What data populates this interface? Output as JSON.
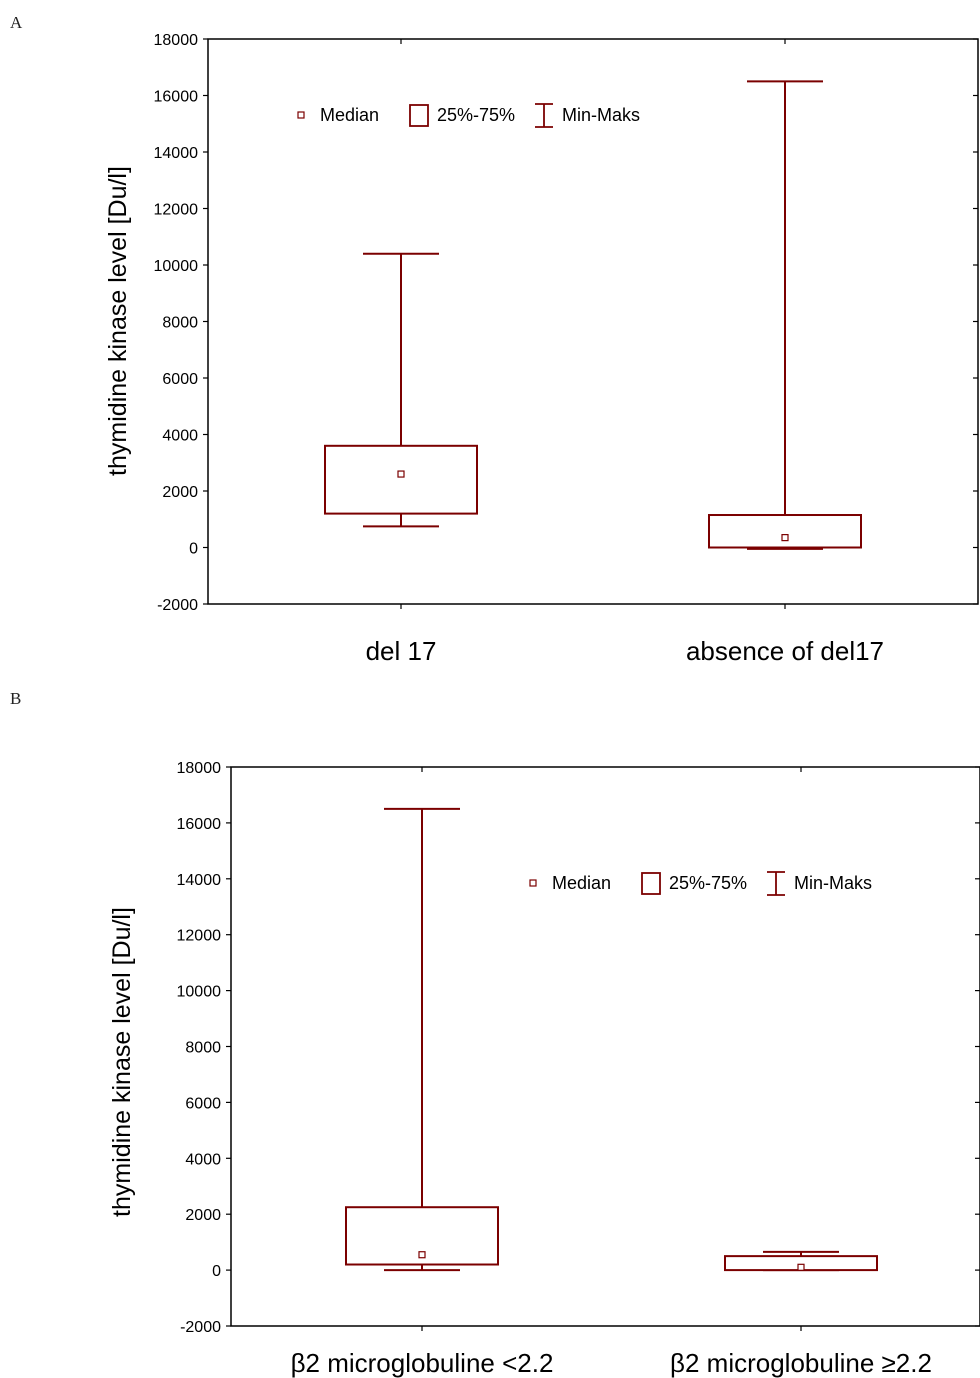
{
  "colors": {
    "series": "#7b0000",
    "axis": "#000000"
  },
  "chart_data": [
    {
      "panel": "A",
      "type": "box",
      "ylabel": "thymidine kinase level [Du/l]",
      "ylim": [
        -2000,
        18000
      ],
      "yticks": [
        -2000,
        0,
        2000,
        4000,
        6000,
        8000,
        10000,
        12000,
        14000,
        16000,
        18000
      ],
      "legend": {
        "placement": "top-left",
        "entries": [
          "Median",
          "25%-75%",
          "Min-Maks"
        ]
      },
      "categories": [
        "del 17",
        "absence of del17"
      ],
      "boxes": [
        {
          "min": 750,
          "q1": 1200,
          "median": 2600,
          "q3": 3600,
          "max": 10400
        },
        {
          "min": -50,
          "q1": 0,
          "median": 350,
          "q3": 1150,
          "max": 16500
        }
      ]
    },
    {
      "panel": "B",
      "type": "box",
      "ylabel": "thymidine kinase level [Du/l]",
      "ylim": [
        -2000,
        18000
      ],
      "yticks": [
        -2000,
        0,
        2000,
        4000,
        6000,
        8000,
        10000,
        12000,
        14000,
        16000,
        18000
      ],
      "legend": {
        "placement": "top-right",
        "entries": [
          "Median",
          "25%-75%",
          "Min-Maks"
        ]
      },
      "categories": [
        "β2 microglobuline <2.2",
        "β2 microglobuline ≥2.2"
      ],
      "boxes": [
        {
          "min": 0,
          "q1": 200,
          "median": 550,
          "q3": 2250,
          "max": 16500
        },
        {
          "min": 0,
          "q1": 0,
          "median": 100,
          "q3": 500,
          "max": 650
        }
      ]
    }
  ]
}
